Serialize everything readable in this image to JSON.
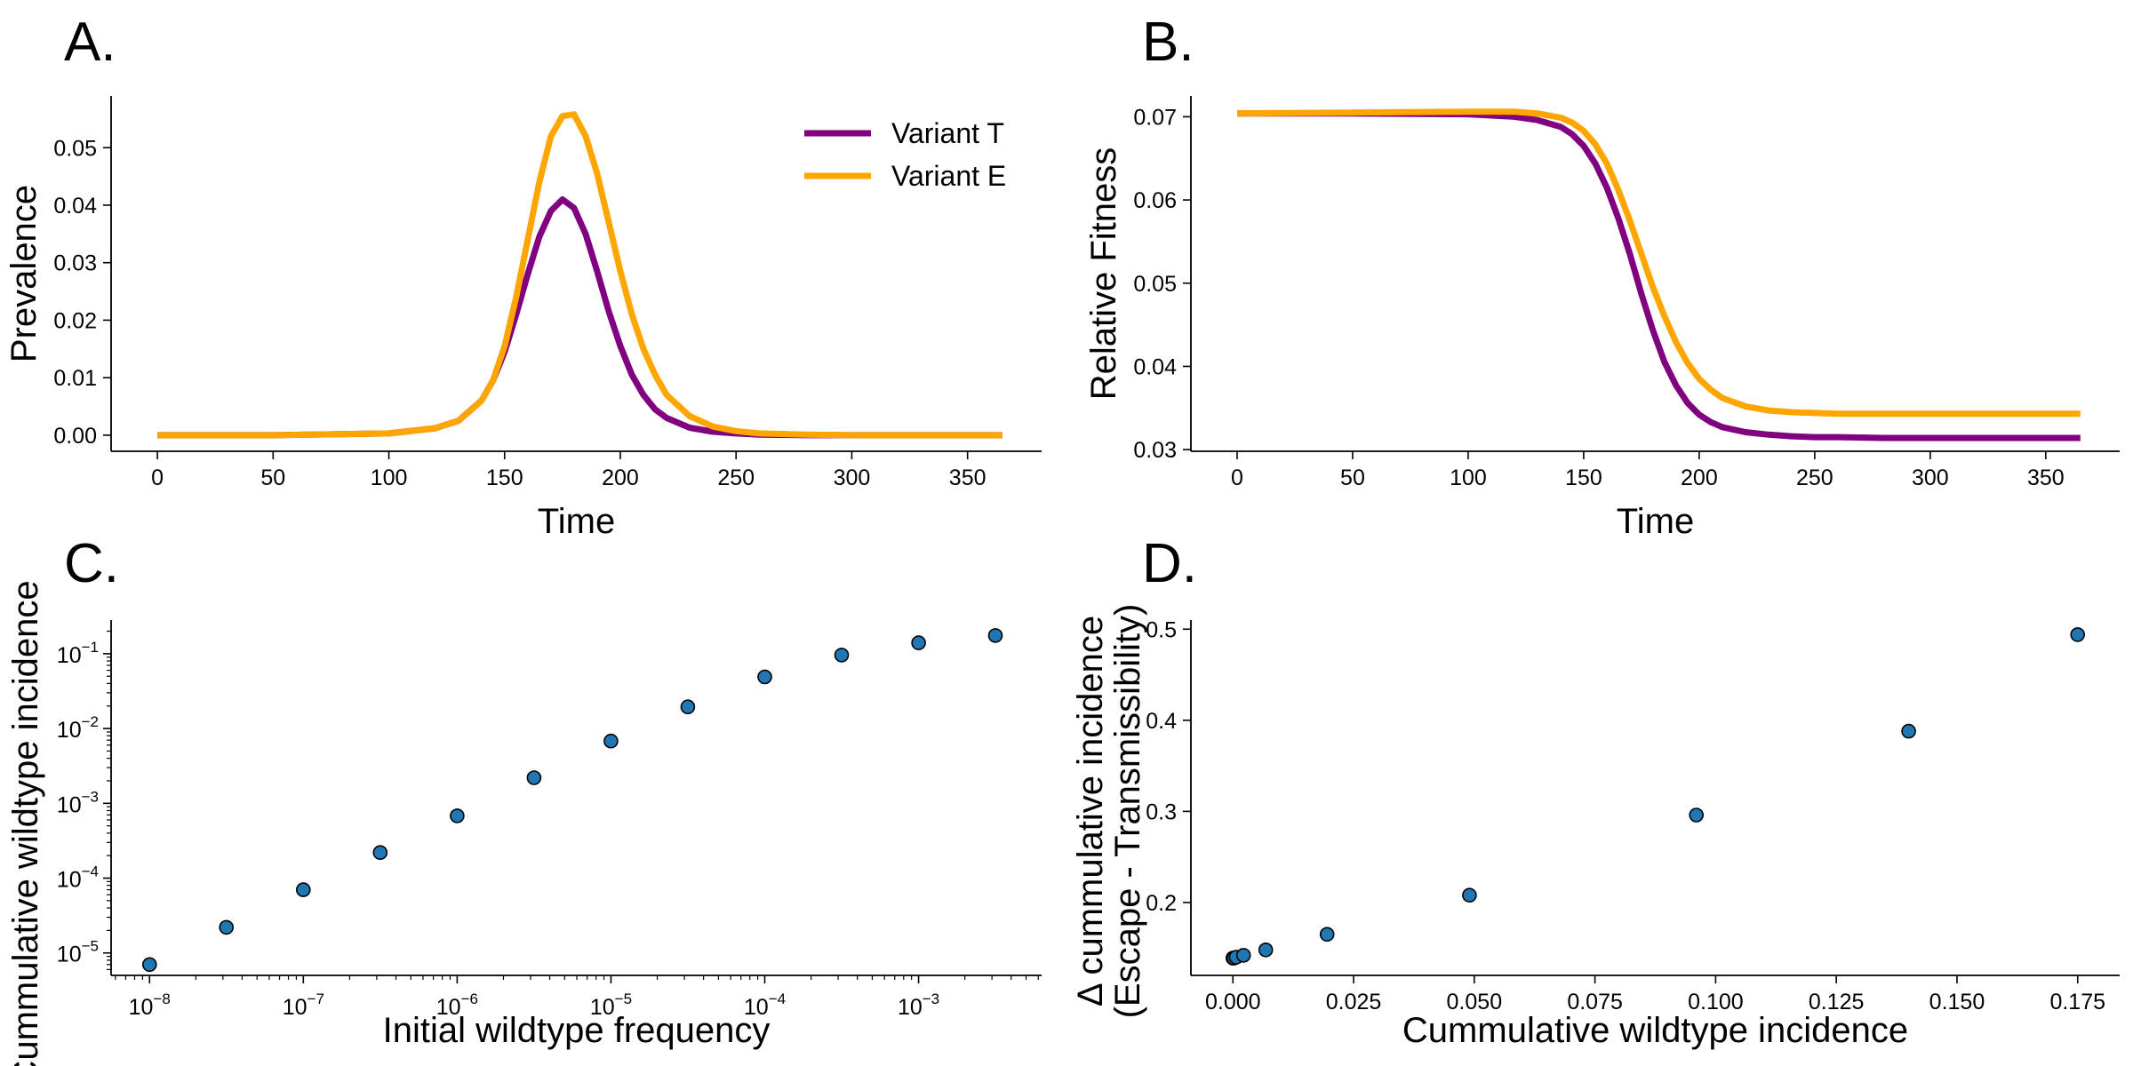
{
  "colors": {
    "variant_t": "#800080",
    "variant_e": "#FFA500",
    "marker_fill": "#1f77b4",
    "marker_edge": "#000000",
    "axis": "#000000"
  },
  "chart_data": [
    {
      "panel": "A.",
      "type": "line",
      "xlabel": "Time",
      "ylabel": "Prevalence",
      "xlim": [
        -20,
        382
      ],
      "ylim": [
        -0.0028,
        0.059
      ],
      "xticks": [
        0,
        50,
        100,
        150,
        200,
        250,
        300,
        350
      ],
      "xtick_labels": [
        "0",
        "50",
        "100",
        "150",
        "200",
        "250",
        "300",
        "350"
      ],
      "yticks": [
        0.0,
        0.01,
        0.02,
        0.03,
        0.04,
        0.05
      ],
      "ytick_labels": [
        "0.00",
        "0.01",
        "0.02",
        "0.03",
        "0.04",
        "0.05"
      ],
      "legend_position": "top-right",
      "grid": false,
      "series": [
        {
          "name": "Variant T",
          "color": "#800080",
          "x": [
            0,
            50,
            100,
            120,
            130,
            140,
            145,
            150,
            155,
            160,
            165,
            170,
            175,
            180,
            185,
            190,
            195,
            200,
            205,
            210,
            215,
            220,
            230,
            240,
            250,
            260,
            280,
            300,
            330,
            365
          ],
          "y": [
            0.0,
            0.0,
            0.0003,
            0.0012,
            0.0025,
            0.006,
            0.0095,
            0.0145,
            0.021,
            0.028,
            0.0345,
            0.039,
            0.041,
            0.0395,
            0.035,
            0.0285,
            0.0215,
            0.0155,
            0.0105,
            0.007,
            0.0045,
            0.003,
            0.0013,
            0.0006,
            0.0003,
            0.0001,
            0.0,
            0.0,
            0.0,
            0.0
          ]
        },
        {
          "name": "Variant E",
          "color": "#FFA500",
          "x": [
            0,
            50,
            100,
            120,
            130,
            140,
            145,
            150,
            155,
            160,
            165,
            170,
            175,
            180,
            185,
            190,
            195,
            200,
            205,
            210,
            215,
            220,
            230,
            240,
            250,
            260,
            280,
            300,
            330,
            365
          ],
          "y": [
            0.0,
            0.0,
            0.0003,
            0.0012,
            0.0025,
            0.006,
            0.0095,
            0.0155,
            0.024,
            0.034,
            0.044,
            0.052,
            0.0555,
            0.0558,
            0.052,
            0.0455,
            0.037,
            0.0285,
            0.021,
            0.015,
            0.0105,
            0.007,
            0.0033,
            0.0015,
            0.0007,
            0.0003,
            0.0001,
            0.0,
            0.0,
            0.0
          ]
        }
      ]
    },
    {
      "panel": "B.",
      "type": "line",
      "xlabel": "Time",
      "ylabel": "Relative Fitness",
      "xlim": [
        -20,
        382
      ],
      "ylim": [
        0.0298,
        0.0725
      ],
      "xticks": [
        0,
        50,
        100,
        150,
        200,
        250,
        300,
        350
      ],
      "xtick_labels": [
        "0",
        "50",
        "100",
        "150",
        "200",
        "250",
        "300",
        "350"
      ],
      "yticks": [
        0.03,
        0.04,
        0.05,
        0.06,
        0.07
      ],
      "ytick_labels": [
        "0.03",
        "0.04",
        "0.05",
        "0.06",
        "0.07"
      ],
      "grid": false,
      "series": [
        {
          "name": "Variant T",
          "color": "#800080",
          "x": [
            0,
            50,
            100,
            120,
            130,
            140,
            145,
            150,
            155,
            160,
            165,
            170,
            175,
            180,
            185,
            190,
            195,
            200,
            205,
            210,
            220,
            230,
            240,
            250,
            260,
            280,
            300,
            330,
            365
          ],
          "y": [
            0.0704,
            0.0704,
            0.0703,
            0.07,
            0.0696,
            0.0688,
            0.0679,
            0.0665,
            0.0644,
            0.0615,
            0.0578,
            0.0535,
            0.0487,
            0.0443,
            0.0405,
            0.0377,
            0.0356,
            0.0342,
            0.0333,
            0.0327,
            0.0321,
            0.0318,
            0.0316,
            0.0315,
            0.0315,
            0.0314,
            0.0314,
            0.0314,
            0.0314
          ]
        },
        {
          "name": "Variant E",
          "color": "#FFA500",
          "x": [
            0,
            50,
            100,
            120,
            130,
            140,
            145,
            150,
            155,
            160,
            165,
            170,
            175,
            180,
            185,
            190,
            195,
            200,
            205,
            210,
            220,
            230,
            240,
            250,
            260,
            280,
            300,
            330,
            365
          ],
          "y": [
            0.0704,
            0.0705,
            0.0706,
            0.0706,
            0.0704,
            0.0699,
            0.0693,
            0.0683,
            0.0667,
            0.0644,
            0.0612,
            0.0575,
            0.0535,
            0.0495,
            0.046,
            0.0429,
            0.0404,
            0.0385,
            0.0372,
            0.0362,
            0.0352,
            0.0347,
            0.0345,
            0.0344,
            0.0343,
            0.0343,
            0.0343,
            0.0343,
            0.0343
          ]
        }
      ]
    },
    {
      "panel": "C.",
      "type": "scatter",
      "xlabel": "Initial wildtype frequency",
      "ylabel": "Cummulative wildtype incidence",
      "xscale": "log",
      "yscale": "log",
      "xlim_log10": [
        -8.25,
        -2.2
      ],
      "ylim_log10": [
        -5.3,
        -0.55
      ],
      "xticks_log10": [
        -8,
        -7,
        -6,
        -5,
        -4,
        -3
      ],
      "yticks_log10": [
        -5,
        -4,
        -3,
        -2,
        -1
      ],
      "xtick_labels": [
        {
          "base": "10",
          "exp": "−8"
        },
        {
          "base": "10",
          "exp": "−7"
        },
        {
          "base": "10",
          "exp": "−6"
        },
        {
          "base": "10",
          "exp": "−5"
        },
        {
          "base": "10",
          "exp": "−4"
        },
        {
          "base": "10",
          "exp": "−3"
        }
      ],
      "ytick_labels": [
        {
          "base": "10",
          "exp": "−5"
        },
        {
          "base": "10",
          "exp": "−4"
        },
        {
          "base": "10",
          "exp": "−3"
        },
        {
          "base": "10",
          "exp": "−2"
        },
        {
          "base": "10",
          "exp": "−1"
        }
      ],
      "grid": false,
      "x": [
        1e-08,
        3.16e-08,
        1e-07,
        3.16e-07,
        1e-06,
        3.16e-06,
        1e-05,
        3.16e-05,
        0.0001,
        0.000316,
        0.001,
        0.00316
      ],
      "y": [
        7e-06,
        2.2e-05,
        7e-05,
        0.00022,
        0.00068,
        0.0022,
        0.0068,
        0.0195,
        0.049,
        0.096,
        0.14,
        0.175
      ]
    },
    {
      "panel": "D.",
      "type": "scatter",
      "xlabel": "Cummulative wildtype incidence",
      "ylabel_lines": [
        "Δ cummulative incidence",
        "(Escape - Transmissibility)"
      ],
      "xlim": [
        -0.0087,
        0.1837
      ],
      "ylim": [
        0.12,
        0.51
      ],
      "xticks": [
        0.0,
        0.025,
        0.05,
        0.075,
        0.1,
        0.125,
        0.15,
        0.175
      ],
      "xtick_labels": [
        "0.000",
        "0.025",
        "0.050",
        "0.075",
        "0.100",
        "0.125",
        "0.150",
        "0.175"
      ],
      "yticks": [
        0.2,
        0.3,
        0.4,
        0.5
      ],
      "ytick_labels": [
        "0.2",
        "0.3",
        "0.4",
        "0.5"
      ],
      "grid": false,
      "x": [
        7e-06,
        2.2e-05,
        7e-05,
        0.00022,
        0.00068,
        0.0022,
        0.0068,
        0.0195,
        0.049,
        0.096,
        0.14,
        0.175
      ],
      "y": [
        0.139,
        0.139,
        0.139,
        0.139,
        0.14,
        0.142,
        0.148,
        0.165,
        0.208,
        0.296,
        0.388,
        0.494
      ]
    }
  ]
}
